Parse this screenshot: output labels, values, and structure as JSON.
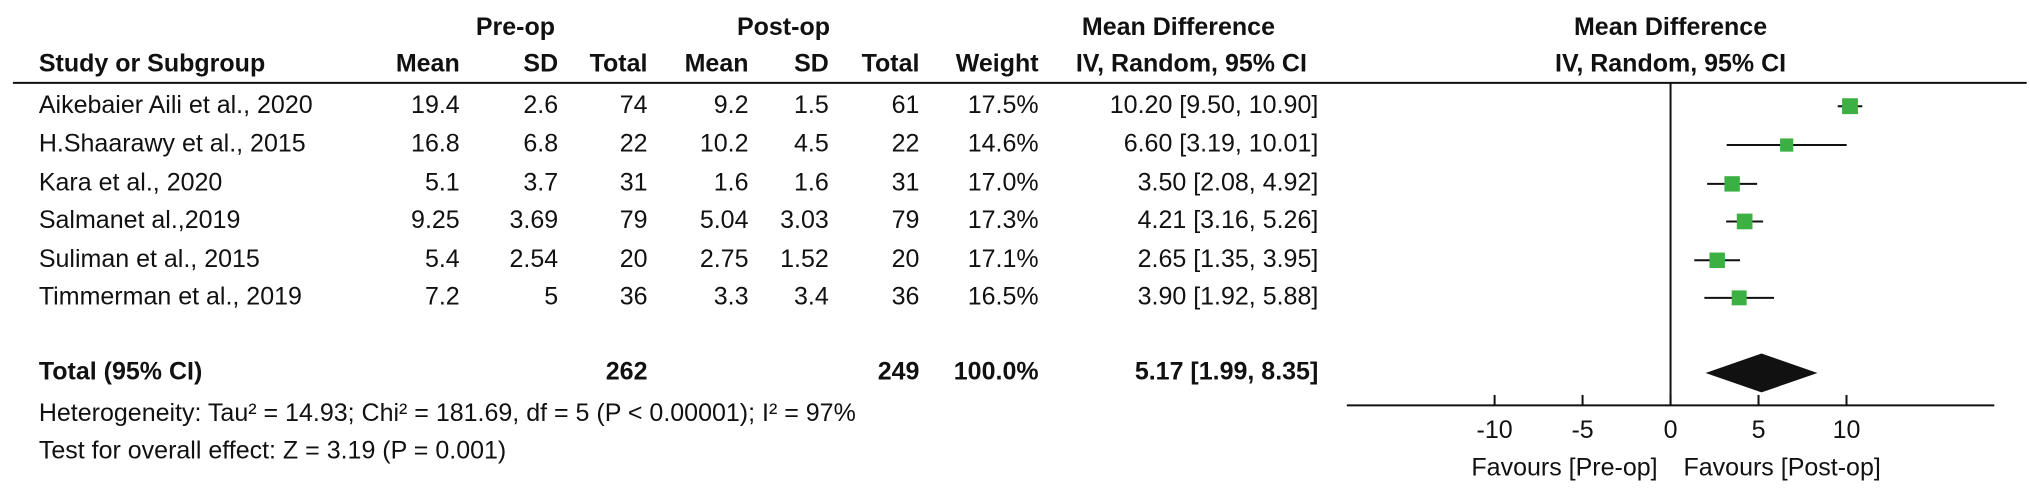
{
  "chart_data": {
    "type": "forest",
    "group_headers": {
      "pre": "Pre-op",
      "post": "Post-op",
      "md_table": "Mean Difference",
      "md_plot": "Mean Difference"
    },
    "columns": {
      "study": "Study or Subgroup",
      "pre_mean": "Mean",
      "pre_sd": "SD",
      "pre_total": "Total",
      "post_mean": "Mean",
      "post_sd": "SD",
      "post_total": "Total",
      "weight": "Weight",
      "ci_table": "IV, Random, 95% CI",
      "ci_plot": "IV, Random, 95% CI"
    },
    "studies": [
      {
        "name": "Aikebaier Aili et al., 2020",
        "pre_mean": 19.4,
        "pre_sd": 2.6,
        "pre_total": 74,
        "post_mean": 9.2,
        "post_sd": 1.5,
        "post_total": 61,
        "weight": 17.5,
        "weight_label": "17.5%",
        "md": 10.2,
        "ci_low": 9.5,
        "ci_high": 10.9,
        "ci_label": "10.20 [9.50, 10.90]"
      },
      {
        "name": "H.Shaarawy et al., 2015",
        "pre_mean": 16.8,
        "pre_sd": 6.8,
        "pre_total": 22,
        "post_mean": 10.2,
        "post_sd": 4.5,
        "post_total": 22,
        "weight": 14.6,
        "weight_label": "14.6%",
        "md": 6.6,
        "ci_low": 3.19,
        "ci_high": 10.01,
        "ci_label": "6.60 [3.19, 10.01]"
      },
      {
        "name": "Kara et al., 2020",
        "pre_mean": 5.1,
        "pre_sd": 3.7,
        "pre_total": 31,
        "post_mean": 1.6,
        "post_sd": 1.6,
        "post_total": 31,
        "weight": 17.0,
        "weight_label": "17.0%",
        "md": 3.5,
        "ci_low": 2.08,
        "ci_high": 4.92,
        "ci_label": "3.50 [2.08, 4.92]"
      },
      {
        "name": "Salmanet al.,2019",
        "pre_mean": 9.25,
        "pre_sd": 3.69,
        "pre_total": 79,
        "post_mean": 5.04,
        "post_sd": 3.03,
        "post_total": 79,
        "weight": 17.3,
        "weight_label": "17.3%",
        "md": 4.21,
        "ci_low": 3.16,
        "ci_high": 5.26,
        "ci_label": "4.21 [3.16, 5.26]"
      },
      {
        "name": "Suliman et al., 2015",
        "pre_mean": 5.4,
        "pre_sd": 2.54,
        "pre_total": 20,
        "post_mean": 2.75,
        "post_sd": 1.52,
        "post_total": 20,
        "weight": 17.1,
        "weight_label": "17.1%",
        "md": 2.65,
        "ci_low": 1.35,
        "ci_high": 3.95,
        "ci_label": "2.65 [1.35, 3.95]"
      },
      {
        "name": "Timmerman et al., 2019",
        "pre_mean": 7.2,
        "pre_sd": 5,
        "pre_total": 36,
        "post_mean": 3.3,
        "post_sd": 3.4,
        "post_total": 36,
        "weight": 16.5,
        "weight_label": "16.5%",
        "md": 3.9,
        "ci_low": 1.92,
        "ci_high": 5.88,
        "ci_label": "3.90 [1.92, 5.88]"
      }
    ],
    "total": {
      "name": "Total (95% CI)",
      "pre_total": 262,
      "post_total": 249,
      "weight": 100.0,
      "weight_label": "100.0%",
      "md": 5.17,
      "ci_low": 1.99,
      "ci_high": 8.35,
      "ci_label": "5.17 [1.99, 8.35]"
    },
    "heterogeneity": "Heterogeneity: Tau² = 14.93; Chi² = 181.69, df = 5 (P < 0.00001); I² = 97%",
    "overall_effect": "Test for overall effect: Z = 3.19 (P = 0.001)",
    "xlim": [
      -18.4,
      18.4
    ],
    "xticks": [
      -10,
      -5,
      0,
      5,
      10
    ],
    "favours_left": "Favours [Pre-op]",
    "favours_right": "Favours [Post-op]",
    "color": "#3cb043"
  }
}
